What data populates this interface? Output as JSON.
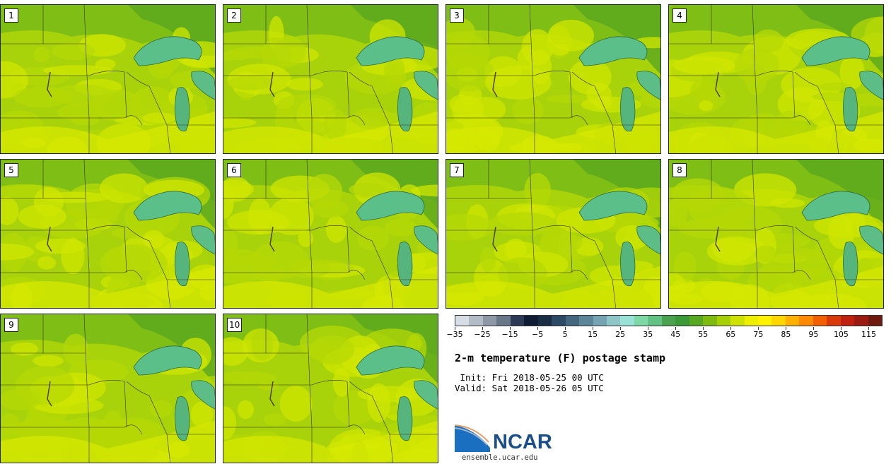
{
  "panels": [
    {
      "label": "1"
    },
    {
      "label": "2"
    },
    {
      "label": "3"
    },
    {
      "label": "4"
    },
    {
      "label": "5"
    },
    {
      "label": "6"
    },
    {
      "label": "7"
    },
    {
      "label": "8"
    },
    {
      "label": "9"
    },
    {
      "label": "10"
    }
  ],
  "colorbar": {
    "colors": [
      "#d6dde4",
      "#b2bcc6",
      "#8c98a6",
      "#6a7789",
      "#2c3a55",
      "#0f1c33",
      "#1b2d44",
      "#2c4a63",
      "#44677f",
      "#5c8599",
      "#75a3b1",
      "#8ec6c8",
      "#98e2d8",
      "#7dd8a5",
      "#62c283",
      "#4aa150",
      "#3c9a36",
      "#57a922",
      "#7fba10",
      "#a6cf05",
      "#cde203",
      "#ecf000",
      "#fff200",
      "#ffd700",
      "#ffb000",
      "#ff8a00",
      "#f25f00",
      "#d8380a",
      "#bf2010",
      "#9c1a12",
      "#6e1a10"
    ],
    "tick_labels": [
      "−35",
      "−25",
      "−15",
      "−5",
      "5",
      "15",
      "25",
      "35",
      "45",
      "55",
      "65",
      "75",
      "85",
      "95",
      "105",
      "115"
    ]
  },
  "title": "2-m temperature (F) postage stamp",
  "init_text": " Init: Fri 2018-05-25 00 UTC",
  "valid_text": "Valid: Sat 2018-05-26 05 UTC",
  "logo": {
    "name": "NCAR",
    "url": "ensemble.ucar.edu"
  }
}
